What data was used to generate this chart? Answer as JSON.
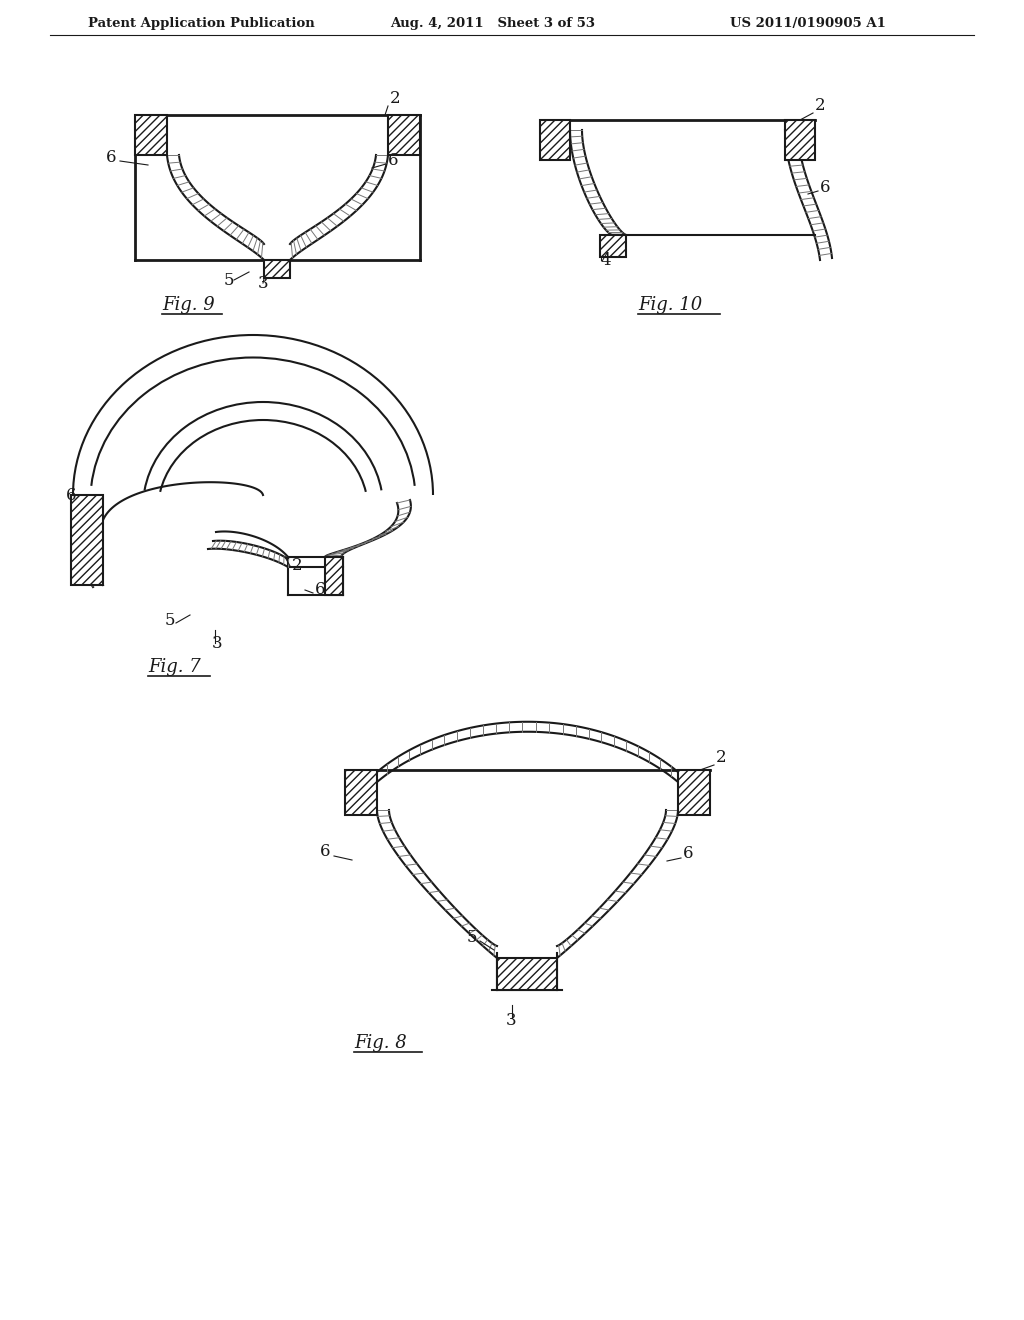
{
  "bg_color": "#ffffff",
  "line_color": "#1a1a1a",
  "header_left": "Patent Application Publication",
  "header_mid": "Aug. 4, 2011   Sheet 3 of 53",
  "header_right": "US 2011/0190905 A1",
  "fig9_label": "Fig. 9",
  "fig10_label": "Fig. 10",
  "fig7_label": "Fig. 7",
  "fig8_label": "Fig. 8"
}
